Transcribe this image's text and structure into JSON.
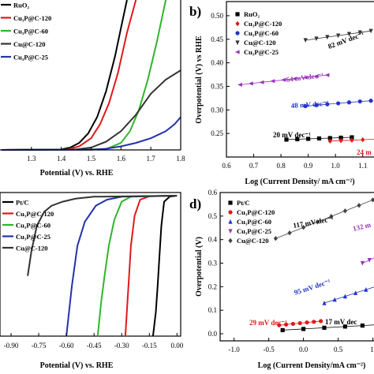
{
  "panels": {
    "a": {
      "legend": [
        "RuO₂",
        "Cu₃P@C-120",
        "Cu₃P@C-60",
        "Cu@C-120",
        "Cu₃P@C-25"
      ],
      "xlabel": "Potential (V) vs. RHE",
      "xticks": [
        "1.3",
        "1.4",
        "1.5",
        "1.6",
        "1.7",
        "1.8"
      ]
    },
    "b": {
      "letter": "b)",
      "legend": [
        "RuO₂",
        "Cu₃P@C-120",
        "Cu₃P@C-60",
        "Cu@C-120",
        "Cu₃P@C-25"
      ],
      "xlabel": "Log (Current Density/ mA cm⁻²)",
      "ylabel": "Overpotential (V) vs RHE",
      "xticks": [
        "0.6",
        "0.7",
        "0.8",
        "0.9",
        "1.0",
        "1.1"
      ],
      "yticks": [
        "0.25",
        "0.30",
        "0.35",
        "0.40",
        "0.45",
        "0.50"
      ],
      "annotations": [
        "82 mV dec⁻¹",
        "64 mV dec⁻¹",
        "48 mV dec⁻¹",
        "20 mV dec⁻¹",
        "24 m"
      ]
    },
    "c": {
      "legend": [
        "Pt/C",
        "Cu₃P@C-120",
        "Cu₃P@C-60",
        "Cu₃P@C-25",
        "Cu@C-120"
      ],
      "xlabel": "Potential (V) vs. RHE",
      "xticks": [
        "-0.90",
        "-0.75",
        "-0.60",
        "-0.45",
        "-0.30",
        "-0.15",
        "0.00"
      ]
    },
    "d": {
      "letter": "d)",
      "legend": [
        "Pt/C",
        "Cu₃P@C-120",
        "Cu₃P@C-60",
        "Cu₃P@C-25",
        "Cu@C-120"
      ],
      "xlabel": "Log (Current Density/mA cm⁻²)",
      "ylabel": "Overpotential (V)",
      "xticks": [
        "-1.0",
        "-0.5",
        "0.0",
        "0.5",
        "1."
      ],
      "yticks": [
        "0.0",
        "0.1",
        "0.2",
        "0.3",
        "0.4",
        "0.5",
        "0.6"
      ],
      "annotations": [
        "117 mV dec⁻¹",
        "132 m",
        "95 mV dec⁻¹",
        "29 mV dec⁻¹",
        "17 mV dec"
      ]
    }
  },
  "chart_data": [
    {
      "panel": "a",
      "type": "line",
      "xlabel": "Potential (V) vs. RHE",
      "xlim": [
        1.2,
        1.8
      ],
      "series": [
        {
          "name": "RuO₂",
          "color": "#000000",
          "x": [
            1.2,
            1.4,
            1.43,
            1.46,
            1.49,
            1.52,
            1.55,
            1.58,
            1.6,
            1.62
          ],
          "y": [
            0,
            0.2,
            1,
            3,
            7,
            14,
            25,
            40,
            52,
            64
          ]
        },
        {
          "name": "Cu₃P@C-120",
          "color": "#e0191a",
          "x": [
            1.2,
            1.42,
            1.46,
            1.5,
            1.53,
            1.56,
            1.59,
            1.62,
            1.65
          ],
          "y": [
            0,
            0.2,
            1.5,
            5,
            11,
            20,
            33,
            50,
            64
          ]
        },
        {
          "name": "Cu₃P@C-60",
          "color": "#2fb52c",
          "x": [
            1.2,
            1.55,
            1.6,
            1.63,
            1.66,
            1.69,
            1.72,
            1.75
          ],
          "y": [
            0,
            0.3,
            3,
            8,
            17,
            30,
            46,
            64
          ]
        },
        {
          "name": "Cu@C-120",
          "color": "#333333",
          "x": [
            1.2,
            1.45,
            1.5,
            1.55,
            1.6,
            1.65,
            1.7,
            1.75,
            1.8
          ],
          "y": [
            0,
            0.2,
            1,
            3.5,
            8,
            15,
            24,
            30,
            34
          ]
        },
        {
          "name": "Cu₃P@C-25",
          "color": "#2233aa",
          "x": [
            1.2,
            1.5,
            1.55,
            1.6,
            1.65,
            1.7,
            1.75,
            1.78,
            1.8
          ],
          "y": [
            0,
            0.1,
            0.5,
            1.5,
            3,
            5,
            8,
            11,
            14
          ]
        }
      ]
    },
    {
      "panel": "b",
      "type": "scatter",
      "xlabel": "Log (Current Density/ mA cm⁻²)",
      "ylabel": "Overpotential (V) vs RHE",
      "xlim": [
        0.6,
        1.15
      ],
      "ylim": [
        0.2,
        0.53
      ],
      "series": [
        {
          "name": "RuO₂",
          "color": "#000000",
          "marker": "square",
          "x": [
            0.82,
            0.86,
            0.9,
            0.94,
            0.98,
            1.02,
            1.06
          ],
          "y": [
            0.237,
            0.2378,
            0.2386,
            0.2394,
            0.2402,
            0.241,
            0.2418
          ]
        },
        {
          "name": "Cu₃P@C-120",
          "color": "#e0191a",
          "marker": "diamond",
          "x": [
            0.98,
            1.02,
            1.06,
            1.1,
            1.15
          ],
          "y": [
            0.2338,
            0.2348,
            0.2357,
            0.2367,
            0.2379
          ]
        },
        {
          "name": "Cu₃P@C-60",
          "color": "#2233cc",
          "marker": "circle",
          "x": [
            0.89,
            0.93,
            0.97,
            1.01,
            1.05,
            1.09,
            1.13
          ],
          "y": [
            0.308,
            0.31,
            0.312,
            0.314,
            0.316,
            0.318,
            0.3195
          ]
        },
        {
          "name": "Cu@C-120",
          "color": "#333333",
          "marker": "triangle-down",
          "x": [
            0.89,
            0.93,
            0.97,
            1.01,
            1.05,
            1.09,
            1.13
          ],
          "y": [
            0.448,
            0.4513,
            0.4546,
            0.4578,
            0.4611,
            0.4644,
            0.4677
          ]
        },
        {
          "name": "Cu₃P@C-25",
          "color": "#9933bb",
          "marker": "triangle-left",
          "x": [
            0.65,
            0.69,
            0.73,
            0.77,
            0.81,
            0.85,
            0.89,
            0.93,
            0.97
          ],
          "y": [
            0.3535,
            0.356,
            0.3586,
            0.3612,
            0.3637,
            0.3663,
            0.3688,
            0.3714,
            0.374
          ]
        }
      ]
    },
    {
      "panel": "c",
      "type": "line",
      "xlabel": "Potential (V) vs. RHE",
      "xlim": [
        -0.96,
        0.02
      ],
      "series": [
        {
          "name": "Pt/C",
          "color": "#000000",
          "x": [
            0.0,
            -0.04,
            -0.07,
            -0.085,
            -0.095,
            -0.105,
            -0.115,
            -0.13
          ],
          "y": [
            0,
            -0.5,
            -3,
            -15,
            -30,
            -45,
            -58,
            -70
          ]
        },
        {
          "name": "Cu₃P@C-120",
          "color": "#e0191a",
          "x": [
            0.0,
            -0.15,
            -0.2,
            -0.23,
            -0.25,
            -0.26,
            -0.27,
            -0.28
          ],
          "y": [
            0,
            -0.3,
            -2,
            -10,
            -25,
            -40,
            -55,
            -70
          ]
        },
        {
          "name": "Cu₃P@C-60",
          "color": "#2fb52c",
          "x": [
            0.0,
            -0.25,
            -0.3,
            -0.34,
            -0.37,
            -0.39,
            -0.41,
            -0.43
          ],
          "y": [
            0,
            -0.5,
            -3,
            -12,
            -25,
            -38,
            -52,
            -70
          ]
        },
        {
          "name": "Cu₃P@C-25",
          "color": "#2233aa",
          "x": [
            0.0,
            -0.3,
            -0.38,
            -0.44,
            -0.5,
            -0.54,
            -0.57,
            -0.6
          ],
          "y": [
            0,
            -0.5,
            -2,
            -5,
            -13,
            -25,
            -45,
            -70
          ]
        },
        {
          "name": "Cu@C-120",
          "color": "#333333",
          "x": [
            0.0,
            -0.45,
            -0.55,
            -0.62,
            -0.68,
            -0.72,
            -0.76,
            -0.79,
            -0.81
          ],
          "y": [
            0,
            -0.5,
            -1.5,
            -3,
            -5,
            -8,
            -15,
            -28,
            -40
          ]
        }
      ]
    },
    {
      "panel": "d",
      "type": "scatter",
      "xlabel": "Log (Current Density/mA cm⁻²)",
      "ylabel": "Overpotential (V)",
      "xlim": [
        -1.2,
        1.05
      ],
      "ylim": [
        -0.03,
        0.6
      ],
      "series": [
        {
          "name": "Pt/C",
          "color": "#000000",
          "marker": "square",
          "x": [
            -0.3,
            0.0,
            0.3,
            0.6,
            0.85,
            1.05
          ],
          "y": [
            0.0155,
            0.0206,
            0.0257,
            0.0308,
            0.035,
            0.0384
          ]
        },
        {
          "name": "Cu₃P@C-120",
          "color": "#e0191a",
          "marker": "circle",
          "x": [
            -0.35,
            -0.25,
            -0.15,
            -0.05,
            0.05,
            0.15,
            0.25
          ],
          "y": [
            0.0365,
            0.0394,
            0.0423,
            0.0452,
            0.0481,
            0.051,
            0.0539
          ]
        },
        {
          "name": "Cu₃P@C-60",
          "color": "#2233cc",
          "marker": "triangle-up",
          "x": [
            0.3,
            0.45,
            0.6,
            0.75,
            0.9,
            1.05
          ],
          "y": [
            0.1305,
            0.1448,
            0.159,
            0.1733,
            0.1875,
            0.2018
          ]
        },
        {
          "name": "Cu₃P@C-25",
          "color": "#9933bb",
          "marker": "triangle-down",
          "x": [
            0.85,
            0.95,
            1.05
          ],
          "y": [
            0.3,
            0.3132,
            0.3264
          ]
        },
        {
          "name": "Cu@C-120",
          "color": "#444444",
          "marker": "diamond",
          "x": [
            -0.4,
            -0.2,
            0.0,
            0.2,
            0.4,
            0.6,
            0.8,
            1.0
          ],
          "y": [
            0.405,
            0.4284,
            0.4518,
            0.4752,
            0.4986,
            0.522,
            0.5454,
            0.5688
          ]
        }
      ]
    }
  ]
}
